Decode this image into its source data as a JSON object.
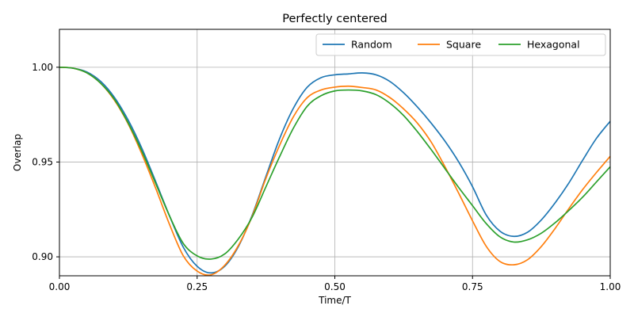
{
  "chart_data": {
    "type": "line",
    "title": "Perfectly centered",
    "xlabel": "Time/T",
    "ylabel": "Overlap",
    "xlim": [
      0,
      1
    ],
    "ylim": [
      0.89,
      1.02
    ],
    "xticks": [
      0,
      0.25,
      0.5,
      0.75,
      1.0
    ],
    "xtick_labels": [
      "0.00",
      "0.25",
      "0.50",
      "0.75",
      "1.00"
    ],
    "yticks": [
      0.9,
      0.95,
      1.0
    ],
    "ytick_labels": [
      "0.90",
      "0.95",
      "1.00"
    ],
    "grid": true,
    "legend_position": "top-right",
    "legend_columns": 3,
    "series": [
      {
        "name": "Random",
        "color": "#1f77b4",
        "x": [
          0,
          0.025,
          0.05,
          0.075,
          0.1,
          0.125,
          0.15,
          0.175,
          0.2,
          0.225,
          0.25,
          0.275,
          0.3,
          0.325,
          0.35,
          0.375,
          0.4,
          0.425,
          0.45,
          0.475,
          0.5,
          0.525,
          0.55,
          0.575,
          0.6,
          0.625,
          0.65,
          0.675,
          0.7,
          0.725,
          0.75,
          0.775,
          0.8,
          0.825,
          0.85,
          0.875,
          0.9,
          0.925,
          0.95,
          0.975,
          1.0
        ],
        "y": [
          1.0,
          0.9995,
          0.9975,
          0.9925,
          0.984,
          0.972,
          0.957,
          0.9395,
          0.9215,
          0.905,
          0.895,
          0.8915,
          0.895,
          0.9055,
          0.922,
          0.9425,
          0.9625,
          0.9785,
          0.9895,
          0.9945,
          0.996,
          0.9965,
          0.997,
          0.996,
          0.9925,
          0.9865,
          0.979,
          0.9705,
          0.961,
          0.95,
          0.937,
          0.922,
          0.9135,
          0.9108,
          0.913,
          0.9195,
          0.9285,
          0.939,
          0.951,
          0.9625,
          0.9715
        ]
      },
      {
        "name": "Square",
        "color": "#ff7f0e",
        "x": [
          0,
          0.025,
          0.05,
          0.075,
          0.1,
          0.125,
          0.15,
          0.175,
          0.2,
          0.225,
          0.25,
          0.275,
          0.3,
          0.325,
          0.35,
          0.375,
          0.4,
          0.425,
          0.45,
          0.475,
          0.5,
          0.525,
          0.55,
          0.575,
          0.6,
          0.625,
          0.65,
          0.675,
          0.7,
          0.725,
          0.75,
          0.775,
          0.8,
          0.825,
          0.85,
          0.875,
          0.9,
          0.925,
          0.95,
          0.975,
          1.0
        ],
        "y": [
          1.0,
          0.9995,
          0.997,
          0.9915,
          0.9825,
          0.97,
          0.954,
          0.936,
          0.917,
          0.9005,
          0.8925,
          0.8905,
          0.8955,
          0.906,
          0.9215,
          0.9415,
          0.959,
          0.974,
          0.984,
          0.988,
          0.9895,
          0.99,
          0.9893,
          0.988,
          0.984,
          0.978,
          0.9705,
          0.9605,
          0.9475,
          0.9335,
          0.919,
          0.9055,
          0.8975,
          0.8958,
          0.8985,
          0.9055,
          0.915,
          0.9255,
          0.9355,
          0.9445,
          0.953
        ]
      },
      {
        "name": "Hexagonal",
        "color": "#2ca02c",
        "x": [
          0,
          0.025,
          0.05,
          0.075,
          0.1,
          0.125,
          0.15,
          0.175,
          0.2,
          0.225,
          0.25,
          0.275,
          0.3,
          0.325,
          0.35,
          0.375,
          0.4,
          0.425,
          0.45,
          0.475,
          0.5,
          0.525,
          0.55,
          0.575,
          0.6,
          0.625,
          0.65,
          0.675,
          0.7,
          0.725,
          0.75,
          0.775,
          0.8,
          0.825,
          0.85,
          0.875,
          0.9,
          0.925,
          0.95,
          0.975,
          1.0
        ],
        "y": [
          1.0,
          0.9995,
          0.997,
          0.9915,
          0.983,
          0.9705,
          0.9555,
          0.9385,
          0.9215,
          0.907,
          0.9005,
          0.8988,
          0.9015,
          0.9095,
          0.921,
          0.937,
          0.953,
          0.968,
          0.9795,
          0.985,
          0.9875,
          0.988,
          0.9875,
          0.9855,
          0.981,
          0.9745,
          0.966,
          0.9565,
          0.9465,
          0.9365,
          0.927,
          0.9175,
          0.9105,
          0.9078,
          0.909,
          0.9125,
          0.918,
          0.9245,
          0.9315,
          0.9395,
          0.9475
        ]
      }
    ]
  }
}
